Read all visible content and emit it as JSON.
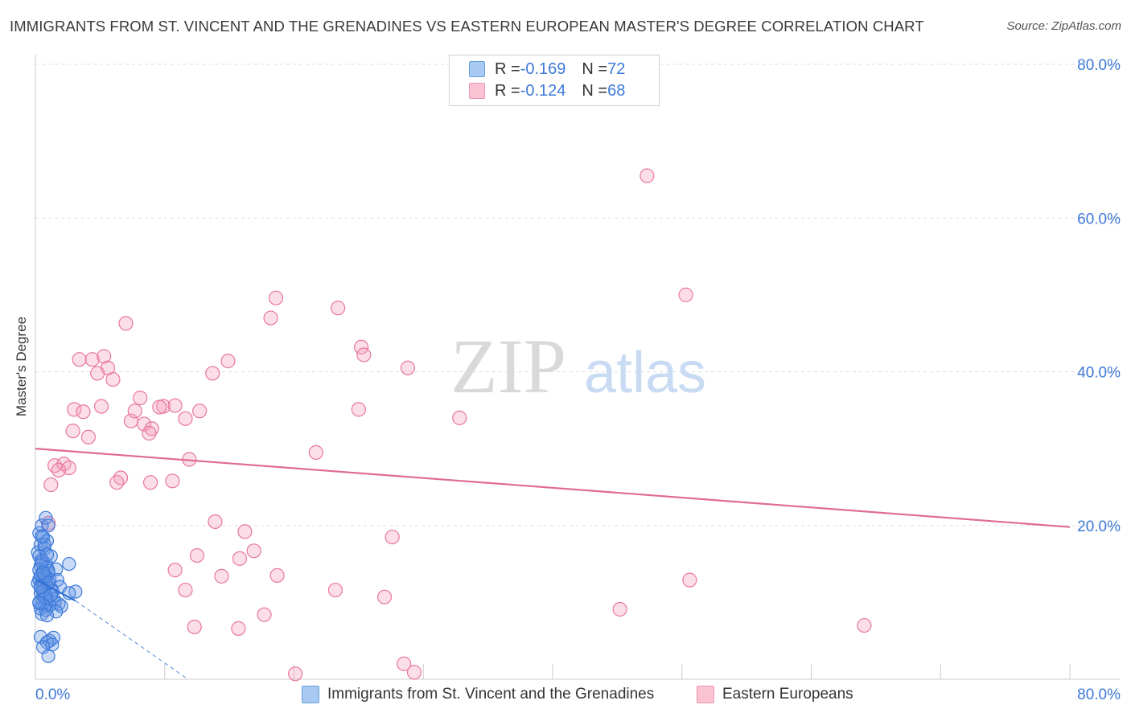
{
  "header": {
    "title": "IMMIGRANTS FROM ST. VINCENT AND THE GRENADINES VS EASTERN EUROPEAN MASTER'S DEGREE CORRELATION CHART",
    "source": "Source: ZipAtlas.com"
  },
  "watermark": {
    "zip": "ZIP",
    "atlas": "atlas"
  },
  "legend": {
    "rows": [
      {
        "r_label": "R = ",
        "r_value": "-0.169",
        "n_label": "N = ",
        "n_value": "72",
        "color": "#a9c8f2",
        "border": "#6a9fe0"
      },
      {
        "r_label": "R = ",
        "r_value": "-0.124",
        "n_label": "N = ",
        "n_value": "68",
        "color": "#f9c3d3",
        "border": "#ee93ae"
      }
    ]
  },
  "bottom_legend": [
    {
      "label": "Immigrants from St. Vincent and the Grenadines",
      "color": "#a9c8f2",
      "border": "#6a9fe0"
    },
    {
      "label": "Eastern Europeans",
      "color": "#f9c3d3",
      "border": "#ee93ae"
    }
  ],
  "colors": {
    "blue_fill": "rgba(100,150,230,0.35)",
    "blue_stroke": "#3b78d8",
    "pink_fill": "rgba(244,160,190,0.35)",
    "pink_stroke": "#e8779e",
    "pink_line": "#e06b93",
    "blue_line": "#2e6fd4",
    "grid": "#dddddd",
    "tick_text": "#3d79d6"
  },
  "chart_data": {
    "type": "scatter",
    "title": "IMMIGRANTS FROM ST. VINCENT AND THE GRENADINES VS EASTERN EUROPEAN MASTER'S DEGREE CORRELATION CHART",
    "xlabel": "",
    "ylabel": "Master's Degree",
    "xlim": [
      0,
      80
    ],
    "ylim": [
      0,
      80
    ],
    "x_tick_labels": [
      "0.0%",
      "80.0%"
    ],
    "y_tick_labels": [
      "20.0%",
      "40.0%",
      "60.0%",
      "80.0%"
    ],
    "y_ticks": [
      20,
      40,
      60,
      80
    ],
    "grid": true,
    "series": [
      {
        "name": "Immigrants from St. Vincent and the Grenadines",
        "r": -0.169,
        "n": 72,
        "trend": {
          "x": [
            0,
            3.1
          ],
          "y": [
            13.0,
            10.2
          ]
        },
        "trend_dashed": {
          "x": [
            3.1,
            11.8
          ],
          "y": [
            10.2,
            0
          ]
        },
        "points": [
          [
            0.3,
            19.0
          ],
          [
            0.5,
            20.0
          ],
          [
            0.8,
            21.0
          ],
          [
            1.0,
            20.0
          ],
          [
            0.6,
            18.5
          ],
          [
            0.4,
            17.5
          ],
          [
            0.9,
            18.0
          ],
          [
            0.2,
            16.5
          ],
          [
            0.7,
            17.0
          ],
          [
            0.3,
            16.0
          ],
          [
            1.2,
            16.0
          ],
          [
            0.5,
            15.5
          ],
          [
            0.8,
            15.0
          ],
          [
            2.6,
            15.0
          ],
          [
            0.4,
            14.8
          ],
          [
            0.9,
            14.5
          ],
          [
            1.6,
            14.3
          ],
          [
            0.3,
            14.2
          ],
          [
            0.6,
            14.0
          ],
          [
            1.0,
            13.8
          ],
          [
            0.4,
            13.5
          ],
          [
            0.8,
            13.2
          ],
          [
            1.1,
            13.0
          ],
          [
            1.7,
            12.9
          ],
          [
            0.5,
            12.7
          ],
          [
            0.2,
            12.5
          ],
          [
            0.9,
            12.3
          ],
          [
            1.9,
            12.0
          ],
          [
            0.6,
            12.0
          ],
          [
            1.2,
            11.8
          ],
          [
            1.3,
            11.5
          ],
          [
            0.4,
            11.2
          ],
          [
            0.8,
            11.0
          ],
          [
            3.1,
            11.4
          ],
          [
            2.6,
            11.2
          ],
          [
            0.6,
            10.8
          ],
          [
            1.4,
            10.5
          ],
          [
            0.9,
            10.2
          ],
          [
            0.3,
            10.0
          ],
          [
            1.5,
            10.0
          ],
          [
            0.5,
            9.8
          ],
          [
            1.8,
            9.8
          ],
          [
            1.1,
            9.6
          ],
          [
            0.7,
            9.5
          ],
          [
            2.0,
            9.5
          ],
          [
            0.4,
            9.2
          ],
          [
            0.8,
            9.0
          ],
          [
            1.6,
            8.8
          ],
          [
            0.5,
            8.5
          ],
          [
            0.9,
            8.3
          ],
          [
            0.4,
            5.5
          ],
          [
            1.4,
            5.4
          ],
          [
            1.1,
            5.0
          ],
          [
            0.9,
            4.8
          ],
          [
            1.3,
            4.5
          ],
          [
            0.6,
            4.2
          ],
          [
            1.0,
            3.0
          ],
          [
            0.7,
            17.5
          ],
          [
            0.5,
            18.6
          ],
          [
            0.3,
            13.0
          ],
          [
            0.7,
            13.4
          ],
          [
            1.0,
            14.1
          ],
          [
            0.4,
            12.1
          ],
          [
            0.6,
            11.5
          ],
          [
            0.8,
            10.6
          ],
          [
            0.3,
            9.9
          ],
          [
            1.2,
            10.9
          ],
          [
            0.5,
            15.2
          ],
          [
            0.9,
            16.2
          ],
          [
            0.6,
            13.8
          ],
          [
            1.0,
            12.6
          ],
          [
            0.4,
            11.9
          ]
        ]
      },
      {
        "name": "Eastern Europeans",
        "r": -0.124,
        "n": 68,
        "trend": {
          "x": [
            0,
            80
          ],
          "y": [
            30.0,
            19.8
          ]
        },
        "points": [
          [
            47.3,
            65.5
          ],
          [
            18.6,
            49.6
          ],
          [
            50.3,
            50.0
          ],
          [
            23.4,
            48.3
          ],
          [
            18.2,
            47.0
          ],
          [
            7.0,
            46.3
          ],
          [
            25.2,
            43.2
          ],
          [
            25.4,
            42.2
          ],
          [
            3.4,
            41.6
          ],
          [
            4.4,
            41.6
          ],
          [
            5.3,
            42.0
          ],
          [
            14.9,
            41.4
          ],
          [
            5.6,
            40.5
          ],
          [
            28.8,
            40.5
          ],
          [
            13.7,
            39.8
          ],
          [
            4.8,
            39.8
          ],
          [
            6.0,
            39.0
          ],
          [
            8.1,
            36.6
          ],
          [
            3.0,
            35.1
          ],
          [
            5.1,
            35.5
          ],
          [
            9.9,
            35.5
          ],
          [
            9.6,
            35.4
          ],
          [
            3.7,
            34.8
          ],
          [
            12.7,
            34.9
          ],
          [
            7.4,
            33.6
          ],
          [
            11.6,
            33.9
          ],
          [
            32.8,
            34.0
          ],
          [
            8.4,
            33.2
          ],
          [
            2.9,
            32.3
          ],
          [
            9.0,
            32.6
          ],
          [
            8.8,
            32.0
          ],
          [
            4.1,
            31.5
          ],
          [
            21.7,
            29.5
          ],
          [
            11.9,
            28.6
          ],
          [
            1.5,
            27.8
          ],
          [
            2.2,
            28.0
          ],
          [
            2.6,
            27.5
          ],
          [
            1.8,
            27.2
          ],
          [
            6.6,
            26.2
          ],
          [
            6.3,
            25.6
          ],
          [
            1.2,
            25.3
          ],
          [
            8.9,
            25.6
          ],
          [
            10.6,
            25.8
          ],
          [
            13.9,
            20.5
          ],
          [
            16.2,
            19.2
          ],
          [
            27.6,
            18.5
          ],
          [
            16.9,
            16.7
          ],
          [
            12.5,
            16.1
          ],
          [
            15.8,
            15.7
          ],
          [
            10.8,
            14.2
          ],
          [
            14.4,
            13.4
          ],
          [
            18.7,
            13.5
          ],
          [
            50.6,
            12.9
          ],
          [
            11.6,
            11.6
          ],
          [
            27.0,
            10.7
          ],
          [
            45.2,
            9.1
          ],
          [
            17.7,
            8.4
          ],
          [
            12.3,
            6.8
          ],
          [
            15.7,
            6.6
          ],
          [
            64.1,
            7.0
          ],
          [
            28.5,
            2.0
          ],
          [
            29.3,
            0.9
          ],
          [
            20.1,
            0.7
          ],
          [
            1.0,
            20.3
          ],
          [
            7.7,
            34.9
          ],
          [
            23.2,
            11.6
          ],
          [
            10.8,
            35.6
          ],
          [
            25.0,
            35.1
          ]
        ]
      }
    ]
  }
}
